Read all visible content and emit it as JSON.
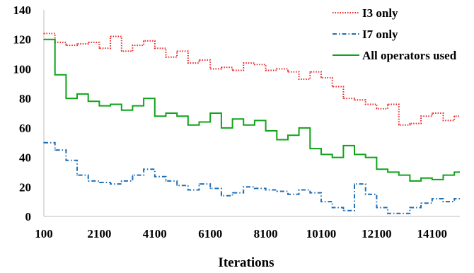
{
  "chart_data": {
    "type": "line",
    "style": "step",
    "xlabel": "Iterations",
    "ylabel": "",
    "xlim": [
      100,
      15100
    ],
    "ylim": [
      0,
      140
    ],
    "x_ticks": [
      100,
      2100,
      4100,
      6100,
      8100,
      10100,
      12100,
      14100
    ],
    "y_ticks": [
      0,
      20,
      40,
      60,
      80,
      100,
      120,
      140
    ],
    "grid": false,
    "legend_position": "top-right",
    "series": [
      {
        "name": "I3 only",
        "color": "#e8262a",
        "dash": "dotted",
        "x": [
          100,
          500,
          900,
          1300,
          1700,
          2100,
          2500,
          2900,
          3300,
          3700,
          4100,
          4500,
          4900,
          5300,
          5700,
          6100,
          6500,
          6900,
          7300,
          7700,
          8100,
          8500,
          8900,
          9300,
          9700,
          10100,
          10500,
          10900,
          11300,
          11700,
          12100,
          12500,
          12900,
          13300,
          13700,
          14100,
          14500,
          14900
        ],
        "values": [
          124,
          118,
          116,
          117,
          118,
          114,
          122,
          112,
          116,
          119,
          114,
          108,
          112,
          104,
          106,
          100,
          101,
          99,
          104,
          103,
          99,
          100,
          98,
          93,
          98,
          94,
          88,
          80,
          79,
          76,
          73,
          76,
          62,
          63,
          68,
          70,
          65,
          68
        ]
      },
      {
        "name": "I7 only",
        "color": "#1f6fb5",
        "dash": "dash-dot",
        "x": [
          100,
          500,
          900,
          1300,
          1700,
          2100,
          2500,
          2900,
          3300,
          3700,
          4100,
          4500,
          4900,
          5300,
          5700,
          6100,
          6500,
          6900,
          7300,
          7700,
          8100,
          8500,
          8900,
          9300,
          9700,
          10100,
          10500,
          10900,
          11300,
          11700,
          12100,
          12500,
          12900,
          13300,
          13700,
          14100,
          14500,
          14900
        ],
        "values": [
          50,
          45,
          38,
          28,
          24,
          23,
          22,
          24,
          28,
          32,
          27,
          24,
          21,
          18,
          22,
          19,
          14,
          16,
          20,
          19,
          18,
          17,
          15,
          18,
          16,
          10,
          6,
          4,
          22,
          15,
          6,
          2,
          2,
          6,
          9,
          12,
          10,
          12
        ]
      },
      {
        "name": "All operators used",
        "color": "#10a31a",
        "dash": "solid",
        "x": [
          100,
          500,
          900,
          1300,
          1700,
          2100,
          2500,
          2900,
          3300,
          3700,
          4100,
          4500,
          4900,
          5300,
          5700,
          6100,
          6500,
          6900,
          7300,
          7700,
          8100,
          8500,
          8900,
          9300,
          9700,
          10100,
          10500,
          10900,
          11300,
          11700,
          12100,
          12500,
          12900,
          13300,
          13700,
          14100,
          14500,
          14900
        ],
        "values": [
          120,
          96,
          80,
          83,
          78,
          75,
          76,
          72,
          75,
          80,
          68,
          70,
          68,
          62,
          64,
          70,
          60,
          66,
          62,
          65,
          58,
          52,
          55,
          60,
          46,
          42,
          40,
          48,
          42,
          40,
          32,
          30,
          28,
          24,
          26,
          25,
          28,
          30
        ]
      }
    ]
  }
}
